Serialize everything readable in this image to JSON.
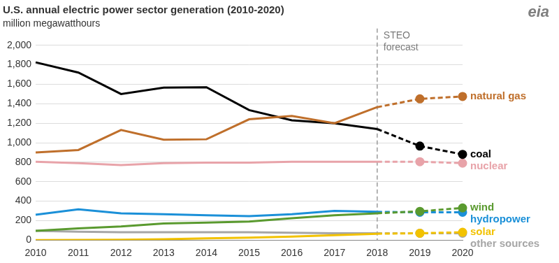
{
  "chart_data": {
    "type": "line",
    "title": "U.S. annual electric power sector generation (2010-2020)",
    "subtitle": "million megawatthours",
    "source": "eia",
    "categories": [
      "2010",
      "2011",
      "2012",
      "2013",
      "2014",
      "2015",
      "2016",
      "2017",
      "2018",
      "2019",
      "2020"
    ],
    "series": [
      {
        "name": "natural gas",
        "color": "#bf6f2b",
        "marker": "circle",
        "values": [
          900,
          925,
          1130,
          1030,
          1035,
          1240,
          1275,
          1200,
          1365,
          1450,
          1475
        ]
      },
      {
        "name": "coal",
        "color": "#000000",
        "marker": "circle",
        "values": [
          1825,
          1720,
          1500,
          1565,
          1570,
          1335,
          1230,
          1200,
          1140,
          965,
          880
        ]
      },
      {
        "name": "nuclear",
        "color": "#e8a3a9",
        "marker": "circle",
        "values": [
          805,
          790,
          770,
          790,
          795,
          795,
          805,
          805,
          805,
          805,
          790
        ]
      },
      {
        "name": "wind",
        "color": "#5a9a2f",
        "marker": "circle",
        "values": [
          95,
          120,
          140,
          170,
          180,
          190,
          225,
          255,
          275,
          295,
          330
        ]
      },
      {
        "name": "hydropower",
        "color": "#1b90d8",
        "marker": "circle",
        "values": [
          260,
          315,
          275,
          265,
          255,
          245,
          265,
          300,
          290,
          285,
          285
        ]
      },
      {
        "name": "solar",
        "color": "#f2c200",
        "marker": "circle",
        "values": [
          0,
          2,
          4,
          9,
          18,
          25,
          35,
          50,
          65,
          70,
          80
        ]
      },
      {
        "name": "other sources",
        "color": "#a6a6a6",
        "marker": "circle",
        "values": [
          95,
          85,
          80,
          80,
          80,
          80,
          75,
          70,
          70,
          70,
          70
        ]
      }
    ],
    "annotations": [
      {
        "text": "STEO forecast",
        "x": "2018",
        "line_style": "dashed"
      }
    ],
    "ylim": [
      0,
      2000
    ],
    "yticks": [
      0,
      200,
      400,
      600,
      800,
      {
        "value": 1000,
        "label": "1,000"
      },
      {
        "value": 1200,
        "label": "1,200"
      },
      {
        "value": 1400,
        "label": "1,400"
      },
      {
        "value": 1600,
        "label": "1,600"
      },
      {
        "value": 1800,
        "label": "1,800"
      },
      {
        "value": 2000,
        "label": "2,000"
      }
    ],
    "grid": true,
    "legend": "none"
  }
}
